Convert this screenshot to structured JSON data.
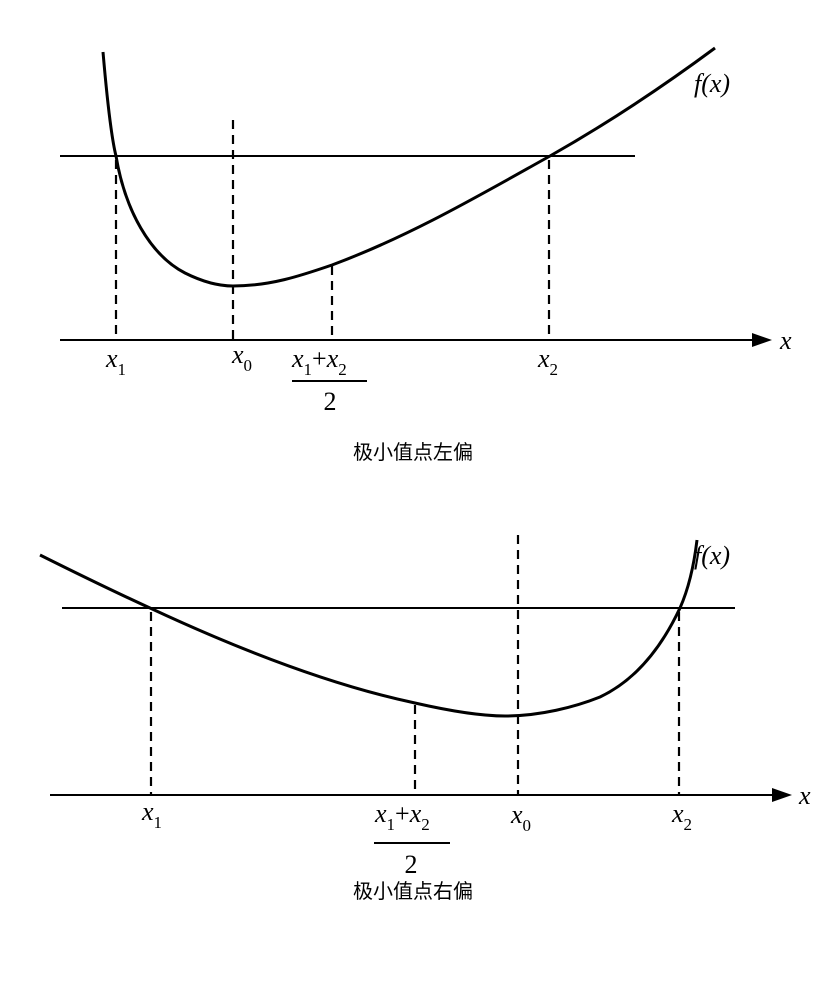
{
  "diagrams": [
    {
      "function_label": "f(x)",
      "axis_label": "x",
      "points": [
        {
          "symbol": "x",
          "subscript": "1"
        },
        {
          "symbol": "x",
          "subscript": "0"
        },
        {
          "symbol": "x",
          "subscript": "2"
        }
      ],
      "midpoint": {
        "numerator": [
          {
            "symbol": "x",
            "subscript": "1"
          },
          "+",
          {
            "symbol": "x",
            "subscript": "2"
          }
        ],
        "denominator": "2"
      },
      "caption": "极小值点左偏"
    },
    {
      "function_label": "f(x)",
      "axis_label": "x",
      "points": [
        {
          "symbol": "x",
          "subscript": "1"
        },
        {
          "symbol": "x",
          "subscript": "0"
        },
        {
          "symbol": "x",
          "subscript": "2"
        }
      ],
      "midpoint": {
        "numerator": [
          {
            "symbol": "x",
            "subscript": "1"
          },
          "+",
          {
            "symbol": "x",
            "subscript": "2"
          }
        ],
        "denominator": "2"
      },
      "caption": "极小值点右偏"
    }
  ]
}
